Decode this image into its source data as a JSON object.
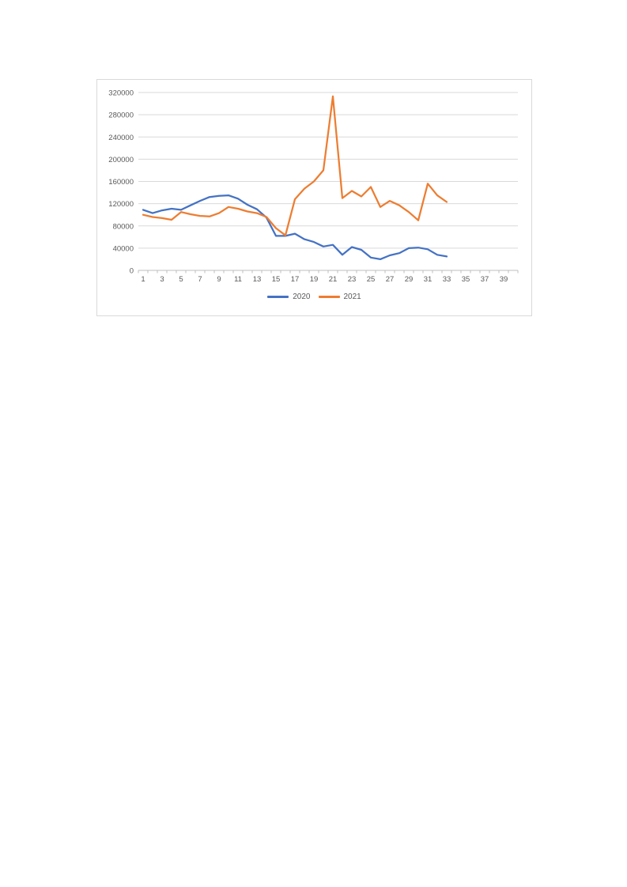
{
  "page": {
    "background": "#ffffff"
  },
  "chart": {
    "background": "#ffffff",
    "border_color": "#D9D9D9"
  },
  "chart_data": {
    "type": "line",
    "title": "",
    "xlabel": "",
    "ylabel": "",
    "grid": "horizontal",
    "legend_position": "bottom",
    "ylim": [
      0,
      320000
    ],
    "y_ticks": [
      0,
      40000,
      80000,
      120000,
      160000,
      200000,
      240000,
      280000,
      320000
    ],
    "y_tick_labels": [
      "0",
      "40000",
      "80000",
      "120000",
      "160000",
      "200000",
      "240000",
      "280000",
      "320000"
    ],
    "x_axis_category_count": 40,
    "x_tick_labels": [
      "1",
      "3",
      "5",
      "7",
      "9",
      "11",
      "13",
      "15",
      "17",
      "19",
      "21",
      "23",
      "25",
      "27",
      "29",
      "31",
      "33",
      "35",
      "37",
      "39"
    ],
    "categories": [
      1,
      2,
      3,
      4,
      5,
      6,
      7,
      8,
      9,
      10,
      11,
      12,
      13,
      14,
      15,
      16,
      17,
      18,
      19,
      20,
      21,
      22,
      23,
      24,
      25,
      26,
      27,
      28,
      29,
      30,
      31,
      32,
      33
    ],
    "colors": {
      "grid": "#D9D9D9",
      "axis": "#BFBFBF",
      "tick_text": "#595959"
    },
    "series": [
      {
        "name": "2020",
        "color": "#4472C4",
        "values": [
          109000,
          103000,
          108000,
          111000,
          109000,
          117000,
          125000,
          132000,
          134000,
          135000,
          129000,
          118000,
          110000,
          95000,
          62000,
          62000,
          66000,
          56000,
          51000,
          43000,
          46000,
          28000,
          42000,
          37000,
          23000,
          20000,
          27000,
          31000,
          40000,
          41000,
          38000,
          28000,
          25000
        ]
      },
      {
        "name": "2021",
        "color": "#ED7D31",
        "values": [
          100000,
          96000,
          94000,
          91000,
          105000,
          101000,
          98000,
          97000,
          103000,
          114000,
          111000,
          106000,
          103000,
          96000,
          76000,
          63000,
          128000,
          147000,
          160000,
          180000,
          313000,
          130000,
          143000,
          133000,
          150000,
          114000,
          125000,
          117000,
          105000,
          90000,
          156000,
          135000,
          123000
        ]
      }
    ]
  }
}
